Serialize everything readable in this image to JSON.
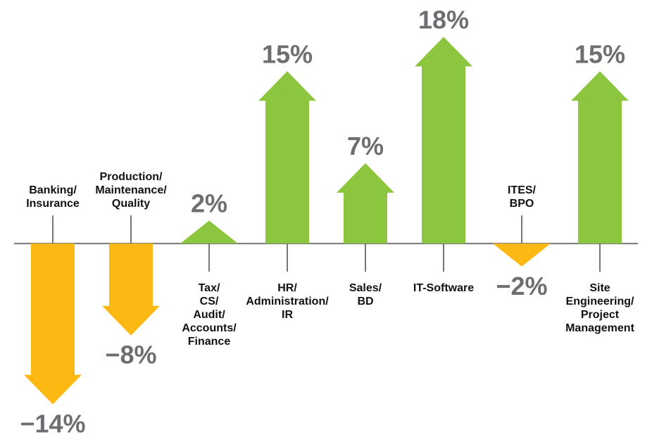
{
  "chart_data": {
    "type": "arrow-bar",
    "categories": [
      "Banking/\nInsurance",
      "Production/\nMaintenance/\nQuality",
      "Tax/\nCS/\nAudit/\nAccounts/\nFinance",
      "HR/\nAdministration/\nIR",
      "Sales/\nBD",
      "IT-Software",
      "ITES/\nBPO",
      "Site\nEngineering/\nProject\nManagement"
    ],
    "values": [
      -14,
      -8,
      2,
      15,
      7,
      18,
      -2,
      15
    ],
    "value_labels": [
      "−14%",
      "−8%",
      "2%",
      "15%",
      "7%",
      "18%",
      "−2%",
      "15%"
    ],
    "positive_color": "#8cc63f",
    "negative_color": "#fdb913",
    "ylim": [
      -15,
      19
    ]
  }
}
